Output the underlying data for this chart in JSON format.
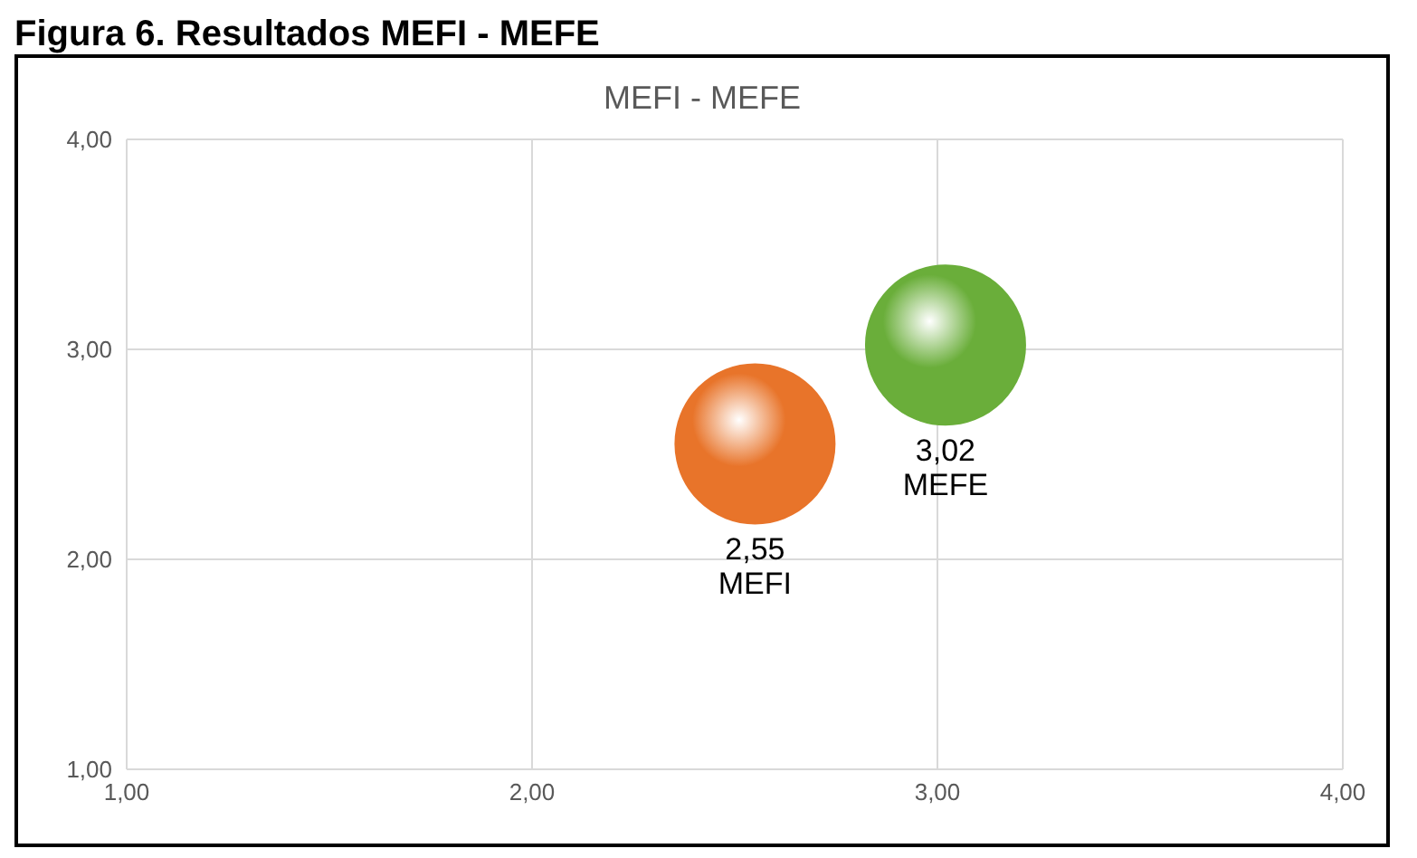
{
  "chart_data": {
    "type": "bubble",
    "title": "Figura 6. Resultados MEFI - MEFE",
    "subtitle": "MEFI - MEFE",
    "series": [
      {
        "name": "MEFI",
        "color": "#e8742a",
        "x": [
          2.55
        ],
        "values": [
          2.55
        ],
        "sizes": [
          1
        ],
        "value_labels": [
          "2,55"
        ]
      },
      {
        "name": "MEFE",
        "color": "#6aae3a",
        "x": [
          3.02
        ],
        "values": [
          3.02
        ],
        "sizes": [
          1
        ],
        "value_labels": [
          "3,02"
        ]
      }
    ],
    "xlim": [
      1,
      4
    ],
    "xticks": [
      {
        "value": 1,
        "label": "1,00"
      },
      {
        "value": 2,
        "label": "2,00"
      },
      {
        "value": 3,
        "label": "3,00"
      },
      {
        "value": 4,
        "label": "4,00"
      }
    ],
    "ylim": [
      1,
      4
    ],
    "yticks": [
      {
        "value": 1,
        "label": "1,00"
      },
      {
        "value": 2,
        "label": "2,00"
      },
      {
        "value": 3,
        "label": "3,00"
      },
      {
        "value": 4,
        "label": "4,00"
      }
    ],
    "grid": true
  }
}
